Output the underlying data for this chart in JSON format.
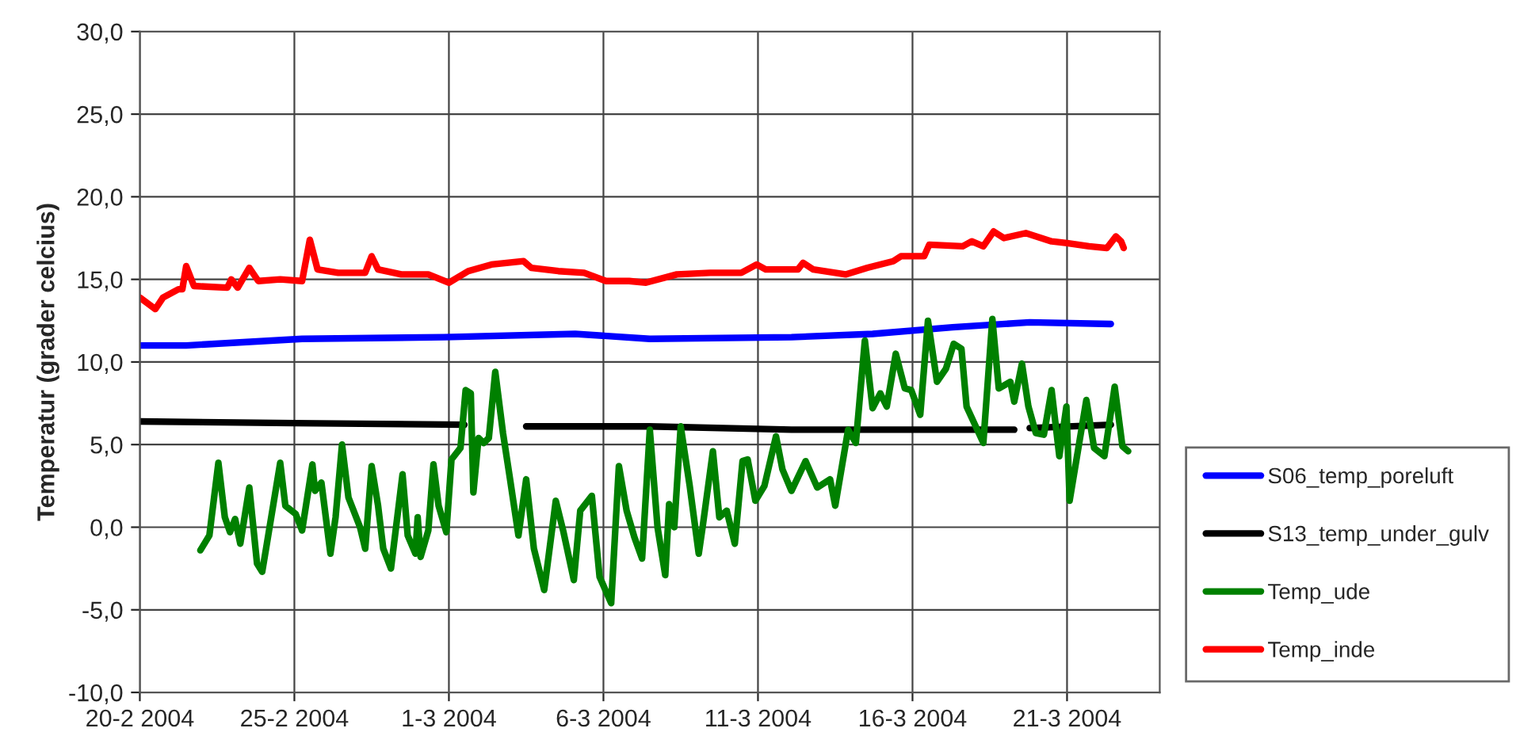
{
  "chart_data": {
    "type": "line",
    "ylabel": "Temperatur (grader celcius)",
    "xlim": [
      "2004-02-20",
      "2004-03-24"
    ],
    "xticks": [
      {
        "value": "2004-02-20",
        "label": "20-2 2004"
      },
      {
        "value": "2004-02-25",
        "label": "25-2 2004"
      },
      {
        "value": "2004-03-01",
        "label": "1-3 2004"
      },
      {
        "value": "2004-03-06",
        "label": "6-3 2004"
      },
      {
        "value": "2004-03-11",
        "label": "11-3 2004"
      },
      {
        "value": "2004-03-16",
        "label": "16-3 2004"
      },
      {
        "value": "2004-03-21",
        "label": "21-3 2004"
      }
    ],
    "ylim": [
      -10,
      30
    ],
    "yticks": [
      {
        "value": -10,
        "label": "-10,0"
      },
      {
        "value": -5,
        "label": "-5,0"
      },
      {
        "value": 0,
        "label": "0,0"
      },
      {
        "value": 5,
        "label": "5,0"
      },
      {
        "value": 10,
        "label": "10,0"
      },
      {
        "value": 15,
        "label": "15,0"
      },
      {
        "value": 20,
        "label": "20,0"
      },
      {
        "value": 25,
        "label": "25,0"
      },
      {
        "value": 30,
        "label": "30,0"
      }
    ],
    "grid": true,
    "legend": "right",
    "line_style": "solid",
    "marker": "none",
    "series": [
      {
        "name": "S06_temp_poreluft",
        "color": "#0000ff",
        "x": [
          "2004-02-20T00:00",
          "2004-02-21T12:00",
          "2004-02-25T06:00",
          "2004-02-29T20:00",
          "2004-03-05T02:00",
          "2004-03-07T12:00",
          "2004-03-12T02:00",
          "2004-03-14T17:00",
          "2004-03-17T07:00",
          "2004-03-19T19:00",
          "2004-03-22T10:00"
        ],
        "values": [
          11.0,
          11.0,
          11.4,
          11.5,
          11.7,
          11.4,
          11.5,
          11.7,
          12.1,
          12.4,
          12.3
        ]
      },
      {
        "name": "S13_temp_under_gulv",
        "color": "#000000",
        "x": [
          "2004-02-20T00:00",
          "2004-02-25T00:00",
          "2004-03-01T12:00",
          "2004-03-02T12:00",
          "2004-03-03T12:00",
          "2004-03-07T12:00",
          "2004-03-12T02:00",
          "2004-03-19T07:00",
          "2004-03-19T12:00",
          "2004-03-19T19:00",
          "2004-03-22T10:00"
        ],
        "values": [
          6.4,
          6.3,
          6.2,
          null,
          6.1,
          6.1,
          5.9,
          5.9,
          null,
          6.0,
          6.2
        ]
      },
      {
        "name": "Temp_ude",
        "color": "#008000",
        "x": [
          "2004-02-21T23:00",
          "2004-02-22T06:00",
          "2004-02-22T13:00",
          "2004-02-22T18:00",
          "2004-02-22T22:00",
          "2004-02-23T02:00",
          "2004-02-23T06:00",
          "2004-02-23T13:00",
          "2004-02-23T19:00",
          "2004-02-23T23:00",
          "2004-02-24T02:00",
          "2004-02-24T13:00",
          "2004-02-24T17:00",
          "2004-02-25T01:00",
          "2004-02-25T06:00",
          "2004-02-25T14:00",
          "2004-02-25T16:00",
          "2004-02-25T21:00",
          "2004-02-26T04:00",
          "2004-02-26T08:00",
          "2004-02-26T13:00",
          "2004-02-26T18:00",
          "2004-02-27T03:00",
          "2004-02-27T07:00",
          "2004-02-27T12:00",
          "2004-02-27T17:00",
          "2004-02-27T21:00",
          "2004-02-28T03:00",
          "2004-02-28T12:00",
          "2004-02-28T16:00",
          "2004-02-28T22:00",
          "2004-02-28T23:45",
          "2004-02-29T02:00",
          "2004-02-29T08:00",
          "2004-02-29T12:00",
          "2004-02-29T16:00",
          "2004-02-29T22:00",
          "2004-03-01T02:00",
          "2004-03-01T09:00",
          "2004-03-01T13:00",
          "2004-03-01T17:00",
          "2004-03-01T19:00",
          "2004-03-01T23:00",
          "2004-03-02T03:00",
          "2004-03-02T07:00",
          "2004-03-02T12:00",
          "2004-03-02T18:00",
          "2004-03-02T23:30",
          "2004-03-03T06:00",
          "2004-03-03T12:00",
          "2004-03-03T18:00",
          "2004-03-04T02:00",
          "2004-03-04T11:00",
          "2004-03-04T17:00",
          "2004-03-05T01:00",
          "2004-03-05T06:00",
          "2004-03-05T15:00",
          "2004-03-05T21:00",
          "2004-03-06T06:00",
          "2004-03-06T12:00",
          "2004-03-06T18:00",
          "2004-03-07T00:00",
          "2004-03-07T06:00",
          "2004-03-07T12:00",
          "2004-03-07T18:00",
          "2004-03-08T00:00",
          "2004-03-08T03:00",
          "2004-03-08T07:00",
          "2004-03-08T12:00",
          "2004-03-08T19:00",
          "2004-03-09T02:00",
          "2004-03-09T05:00",
          "2004-03-09T13:00",
          "2004-03-09T18:00",
          "2004-03-09T23:45",
          "2004-03-10T06:00",
          "2004-03-10T12:00",
          "2004-03-10T16:00",
          "2004-03-10T22:00",
          "2004-03-11T05:00",
          "2004-03-11T14:00",
          "2004-03-11T19:00",
          "2004-03-12T02:00",
          "2004-03-12T13:00",
          "2004-03-12T22:00",
          "2004-03-13T08:00",
          "2004-03-13T12:00",
          "2004-03-13T22:00",
          "2004-03-14T04:00",
          "2004-03-14T11:00",
          "2004-03-14T17:00",
          "2004-03-14T23:00",
          "2004-03-15T04:00",
          "2004-03-15T11:00",
          "2004-03-15T18:00",
          "2004-03-15T23:00",
          "2004-03-16T06:00",
          "2004-03-16T12:00",
          "2004-03-16T19:00",
          "2004-03-17T02:00",
          "2004-03-17T08:00",
          "2004-03-17T14:00",
          "2004-03-17T18:00",
          "2004-03-18T07:00",
          "2004-03-18T14:00",
          "2004-03-18T19:00",
          "2004-03-19T04:00",
          "2004-03-19T07:00",
          "2004-03-19T13:00",
          "2004-03-19T18:00",
          "2004-03-19T23:45",
          "2004-03-20T06:00",
          "2004-03-20T12:00",
          "2004-03-20T18:00",
          "2004-03-20T23:30",
          "2004-03-21T02:00",
          "2004-03-21T15:00",
          "2004-03-21T21:00",
          "2004-03-22T05:00",
          "2004-03-22T13:00",
          "2004-03-22T19:00",
          "2004-03-22T23:30"
        ],
        "values": [
          -1.4,
          -0.5,
          3.9,
          0.6,
          -0.3,
          0.5,
          -1.0,
          2.4,
          -2.2,
          -2.7,
          -1.3,
          3.9,
          1.3,
          0.8,
          -0.2,
          3.8,
          2.2,
          2.7,
          -1.6,
          0.6,
          5.0,
          1.8,
          0.0,
          -1.3,
          3.7,
          1.3,
          -1.3,
          -2.5,
          3.2,
          -0.5,
          -1.6,
          0.6,
          -1.8,
          -0.2,
          3.8,
          1.3,
          -0.3,
          4.1,
          4.8,
          8.3,
          8.1,
          2.1,
          5.4,
          5.1,
          5.4,
          9.4,
          5.7,
          2.9,
          -0.5,
          2.9,
          -1.3,
          -3.8,
          1.6,
          -0.3,
          -3.2,
          1.0,
          1.9,
          -3.0,
          -4.6,
          3.7,
          1.0,
          -0.6,
          -1.9,
          5.9,
          0.0,
          -2.9,
          1.4,
          0.0,
          6.1,
          2.5,
          -1.6,
          0.0,
          4.6,
          0.6,
          1.0,
          -1.0,
          4.0,
          4.1,
          1.6,
          2.5,
          5.5,
          3.5,
          2.2,
          4.0,
          2.4,
          2.9,
          1.3,
          5.9,
          5.1,
          11.3,
          7.2,
          8.1,
          7.3,
          10.5,
          8.4,
          8.3,
          6.8,
          12.5,
          8.8,
          9.6,
          11.1,
          10.8,
          7.3,
          5.1,
          12.6,
          8.4,
          8.8,
          7.6,
          9.9,
          7.3,
          5.7,
          5.6,
          8.3,
          4.3,
          7.3,
          1.6,
          7.7,
          4.8,
          4.3,
          8.5,
          4.9,
          4.6
        ]
      },
      {
        "name": "Temp_inde",
        "color": "#ff0000",
        "x": [
          "2004-02-20T00:00",
          "2004-02-20T12:00",
          "2004-02-20T18:00",
          "2004-02-21T06:00",
          "2004-02-21T09:00",
          "2004-02-21T12:00",
          "2004-02-21T18:00",
          "2004-02-22T20:00",
          "2004-02-22T23:00",
          "2004-02-23T04:00",
          "2004-02-23T13:00",
          "2004-02-23T20:00",
          "2004-02-24T13:00",
          "2004-02-25T06:00",
          "2004-02-25T12:00",
          "2004-02-25T18:00",
          "2004-02-26T10:00",
          "2004-02-27T07:00",
          "2004-02-27T12:00",
          "2004-02-27T17:00",
          "2004-02-28T11:00",
          "2004-02-29T08:00",
          "2004-03-01T00:00",
          "2004-03-01T15:00",
          "2004-03-02T09:00",
          "2004-03-03T10:00",
          "2004-03-03T16:00",
          "2004-03-04T13:00",
          "2004-03-05T09:00",
          "2004-03-06T02:00",
          "2004-03-06T20:00",
          "2004-03-07T09:00",
          "2004-03-08T09:00",
          "2004-03-09T11:00",
          "2004-03-10T11:00",
          "2004-03-10T23:00",
          "2004-03-11T06:00",
          "2004-03-12T07:00",
          "2004-03-12T11:00",
          "2004-03-12T19:00",
          "2004-03-13T20:00",
          "2004-03-14T13:00",
          "2004-03-15T09:00",
          "2004-03-15T15:00",
          "2004-03-16T09:00",
          "2004-03-16T13:00",
          "2004-03-17T15:00",
          "2004-03-17T22:00",
          "2004-03-18T07:00",
          "2004-03-18T15:00",
          "2004-03-18T23:00",
          "2004-03-19T16:00",
          "2004-03-20T12:00",
          "2004-03-21T00:00",
          "2004-03-21T17:00",
          "2004-03-22T07:00",
          "2004-03-22T14:00",
          "2004-03-22T18:00",
          "2004-03-22T20:00"
        ],
        "values": [
          13.9,
          13.2,
          13.9,
          14.4,
          14.4,
          15.8,
          14.6,
          14.5,
          15.0,
          14.5,
          15.7,
          14.9,
          15.0,
          14.9,
          17.4,
          15.6,
          15.4,
          15.4,
          16.4,
          15.6,
          15.3,
          15.3,
          14.8,
          15.5,
          15.9,
          16.1,
          15.7,
          15.5,
          15.4,
          14.9,
          14.9,
          14.8,
          15.3,
          15.4,
          15.4,
          15.9,
          15.6,
          15.6,
          16.0,
          15.6,
          15.3,
          15.7,
          16.1,
          16.4,
          16.4,
          17.1,
          17.0,
          17.3,
          17.0,
          17.9,
          17.5,
          17.8,
          17.3,
          17.2,
          17.0,
          16.9,
          17.6,
          17.3,
          16.9
        ]
      }
    ]
  }
}
